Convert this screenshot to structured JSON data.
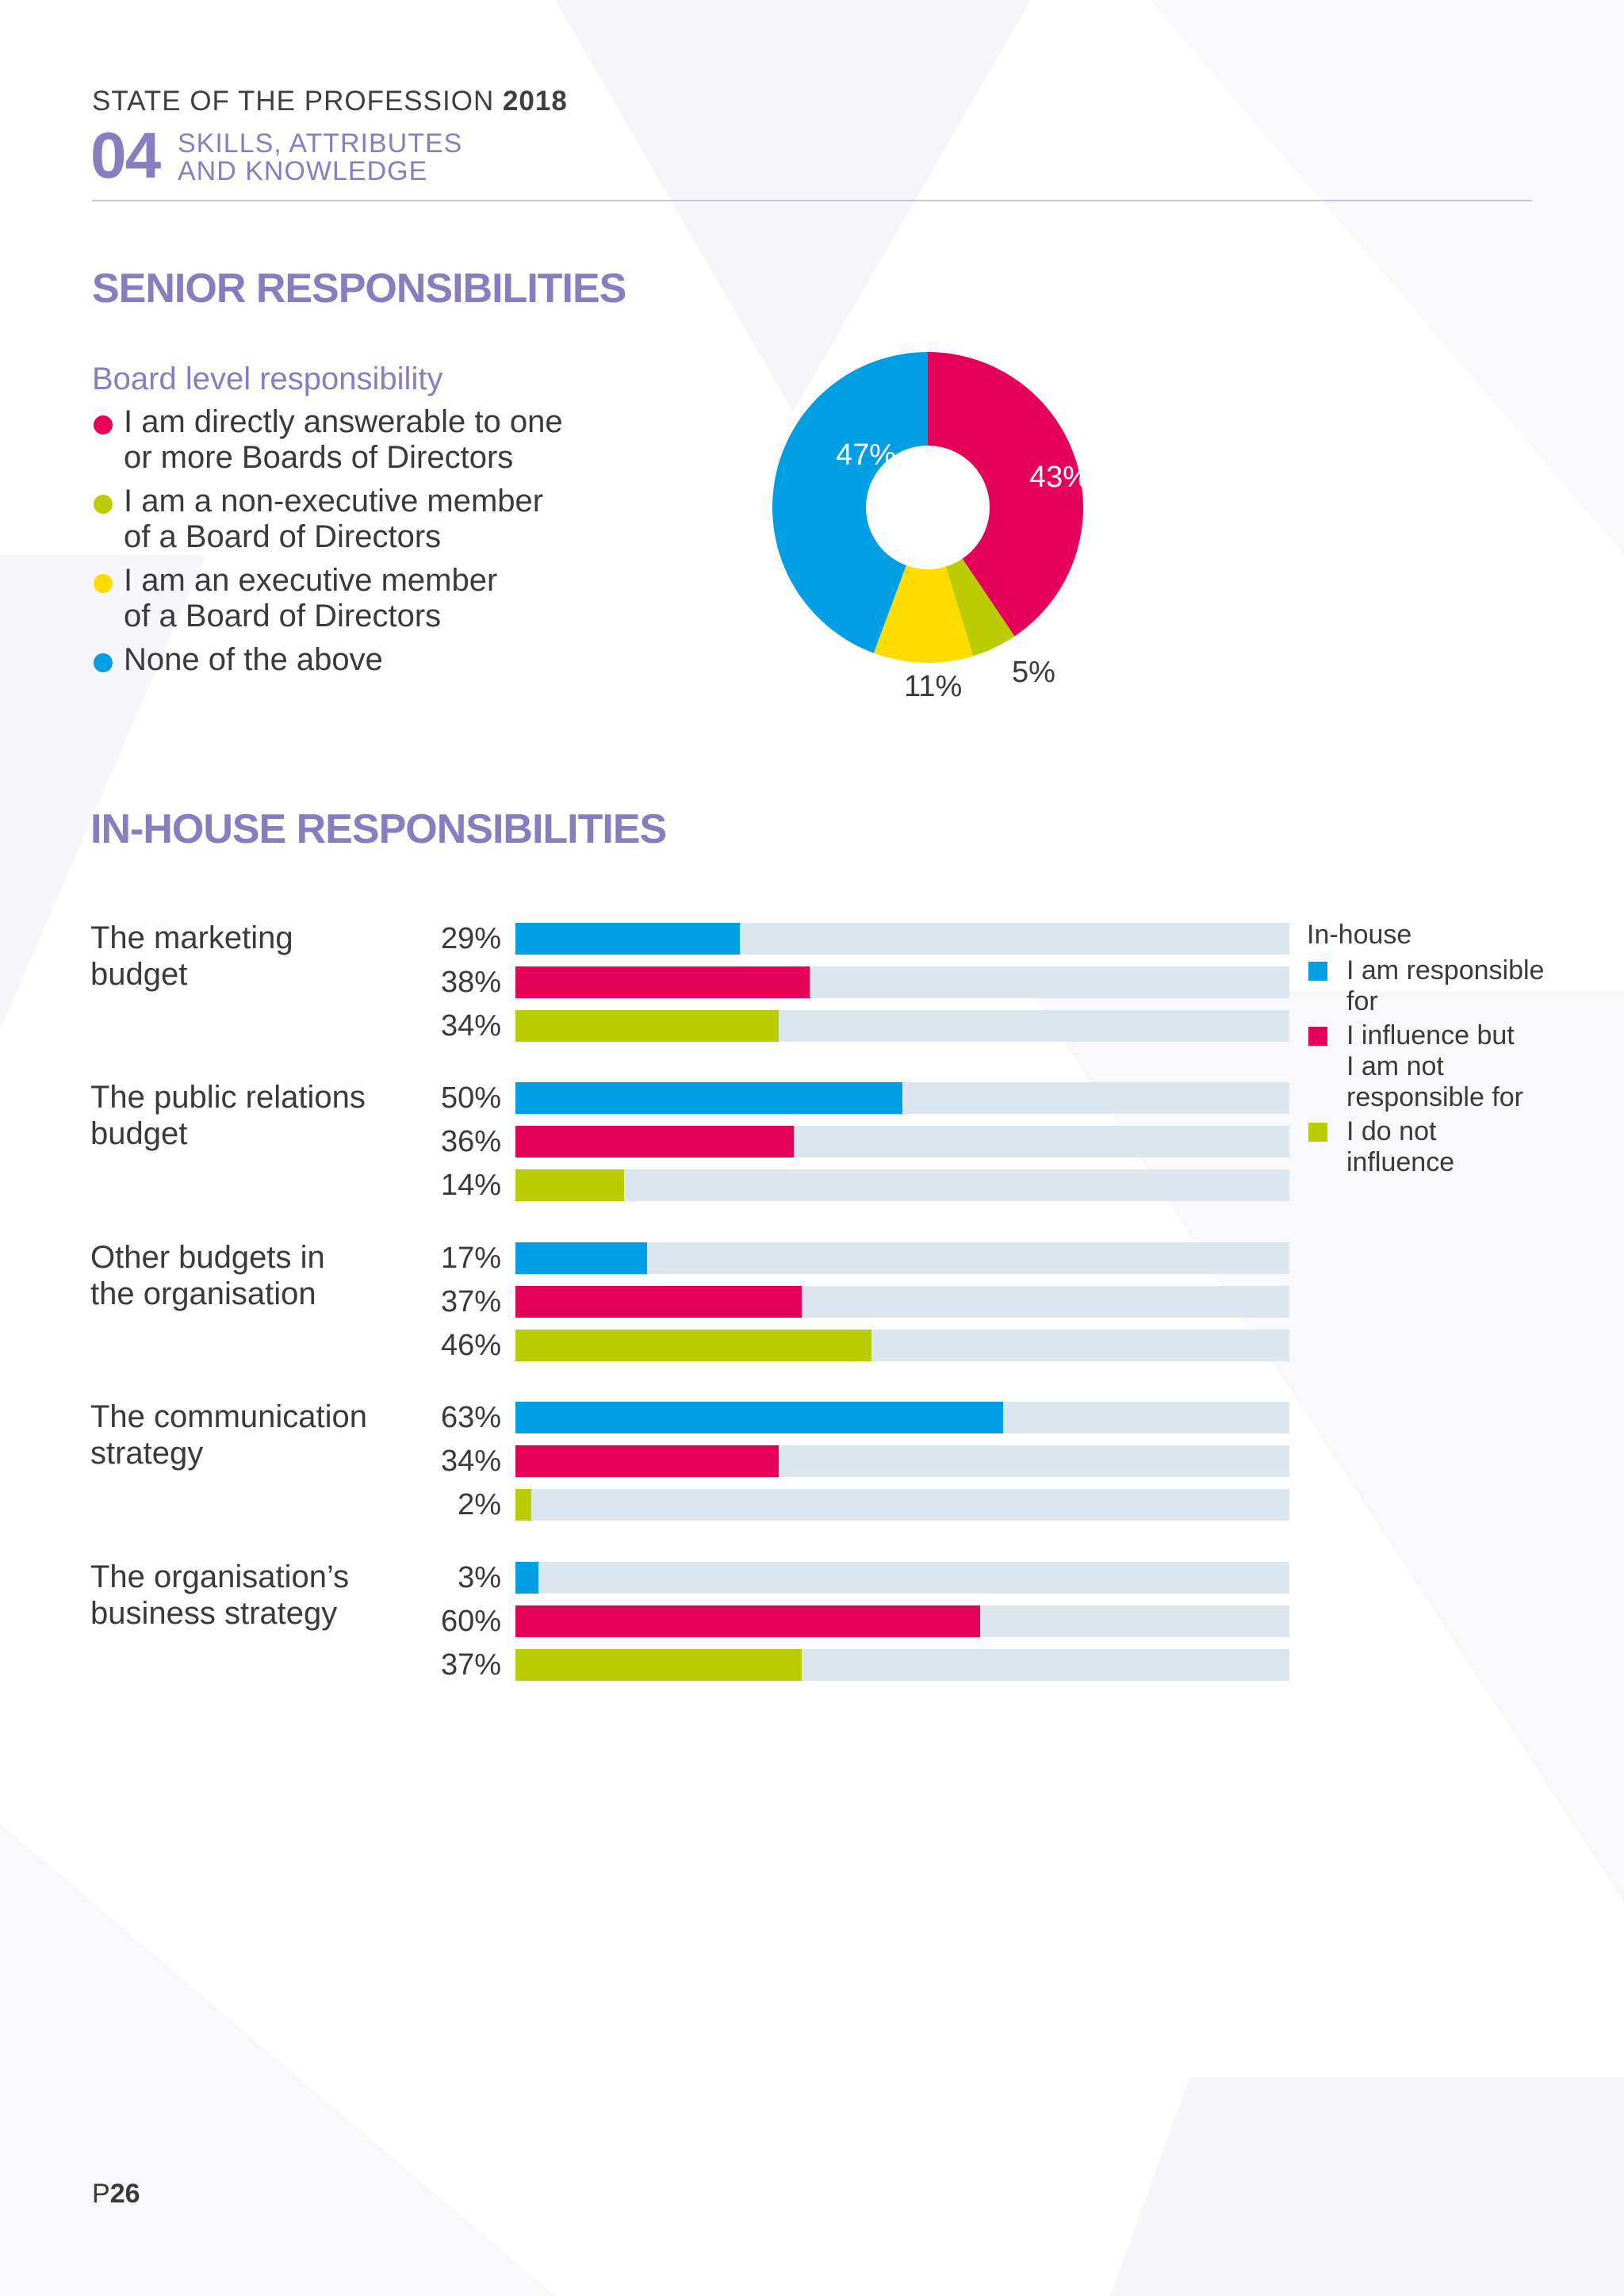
{
  "header": {
    "title_prefix": "STATE OF THE PROFESSION",
    "title_year": "2018",
    "section_number": "04",
    "section_line1": "SKILLS, ATTRIBUTES",
    "section_line2": "AND KNOWLEDGE"
  },
  "senior": {
    "heading": "SENIOR RESPONSIBILITIES",
    "subheading": "Board level responsibility",
    "legend": [
      {
        "line1": "I am directly answerable to one",
        "line2": "or more Boards of Directors",
        "color": "#e5005a"
      },
      {
        "line1": "I am a non-executive member",
        "line2": "of a Board of Directors",
        "color": "#b9cd00"
      },
      {
        "line1": "I am an executive member",
        "line2": "of a Board of Directors",
        "color": "#ffdc00"
      },
      {
        "line1": "None of the above",
        "line2": "",
        "color": "#009fe3"
      }
    ]
  },
  "inhouse": {
    "heading": "IN-HOUSE RESPONSIBILITIES",
    "legend_title": "In-house",
    "legend": [
      {
        "line1": "I am responsible",
        "line2": "for",
        "line3": "",
        "color": "#009fe3"
      },
      {
        "line1": "I influence but",
        "line2": "I am not",
        "line3": "responsible for",
        "color": "#e5005a"
      },
      {
        "line1": "I do not",
        "line2": "influence",
        "line3": "",
        "color": "#b9cd00"
      }
    ],
    "categories": [
      {
        "line1": "The marketing",
        "line2": "budget"
      },
      {
        "line1": "The public relations",
        "line2": "budget"
      },
      {
        "line1": "Other budgets in",
        "line2": "the organisation"
      },
      {
        "line1": "The communication",
        "line2": "strategy"
      },
      {
        "line1": "The organisation’s",
        "line2": "business strategy"
      }
    ],
    "pct_labels": [
      [
        "29%",
        "38%",
        "34%"
      ],
      [
        "50%",
        "36%",
        "14%"
      ],
      [
        "17%",
        "37%",
        "46%"
      ],
      [
        "63%",
        "34%",
        "2%"
      ],
      [
        "3%",
        "60%",
        "37%"
      ]
    ]
  },
  "chart_data": [
    {
      "type": "pie",
      "variant": "donut",
      "title": "Board level responsibility",
      "slices": [
        {
          "name": "I am directly answerable to one or more Boards of Directors",
          "value": 43,
          "label": "43%",
          "color": "#e5005a"
        },
        {
          "name": "I am a non-executive member of a Board of Directors",
          "value": 5,
          "label": "5%",
          "color": "#b9cd00"
        },
        {
          "name": "I am an executive member of a Board of Directors",
          "value": 11,
          "label": "11%",
          "color": "#ffdc00"
        },
        {
          "name": "None of the above",
          "value": 47,
          "label": "47%",
          "color": "#009fe3"
        }
      ]
    },
    {
      "type": "bar",
      "orientation": "horizontal",
      "title": "IN-HOUSE RESPONSIBILITIES",
      "categories": [
        "The marketing budget",
        "The public relations budget",
        "Other budgets in the organisation",
        "The communication strategy",
        "The organisation’s business strategy"
      ],
      "series": [
        {
          "name": "I am responsible for",
          "values": [
            29,
            50,
            17,
            63,
            3
          ],
          "color": "#009fe3"
        },
        {
          "name": "I influence but I am not responsible for",
          "values": [
            38,
            36,
            37,
            34,
            60
          ],
          "color": "#e5005a"
        },
        {
          "name": "I do not influence",
          "values": [
            34,
            14,
            46,
            2,
            37
          ],
          "color": "#b9cd00"
        }
      ],
      "xlim": [
        0,
        100
      ],
      "legend_position": "right",
      "track_color": "#dce6ee"
    }
  ],
  "footer": {
    "page_prefix": "P",
    "page_number": "26"
  }
}
